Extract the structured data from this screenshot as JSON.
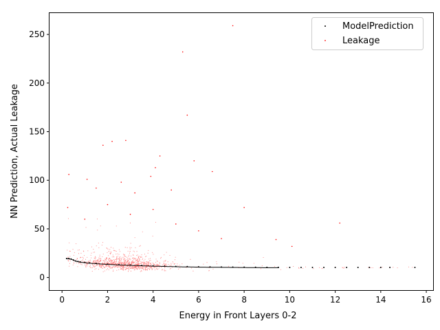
{
  "chart_data": {
    "type": "scatter",
    "title": "",
    "xlabel": "Energy in Front Layers 0-2",
    "ylabel": "NN Prediction, Actual Leakage",
    "xlim": [
      -0.55,
      16.3
    ],
    "ylim": [
      -13,
      272
    ],
    "xticks": [
      0,
      2,
      4,
      6,
      8,
      10,
      12,
      14,
      16
    ],
    "yticks": [
      0,
      50,
      100,
      150,
      200,
      250
    ],
    "grid": false,
    "legend_position": "top-right",
    "series": [
      {
        "name": "ModelPrediction",
        "color": "#000000",
        "marker": "point",
        "x": [
          0.2,
          0.3,
          0.4,
          0.5,
          0.6,
          0.7,
          0.8,
          1.0,
          1.2,
          1.5,
          2.0,
          2.5,
          3.0,
          3.5,
          4.0,
          4.5,
          5.0,
          5.5,
          6.0,
          6.5,
          7.0,
          7.5,
          8.0,
          8.5,
          9.0,
          9.5,
          10.0,
          10.5,
          11.0,
          11.5,
          12.0,
          12.5,
          13.0,
          13.5,
          14.0,
          14.4,
          15.5
        ],
        "y": [
          19.5,
          19.5,
          19.0,
          18.0,
          17.0,
          16.5,
          16.0,
          15.5,
          15.0,
          14.5,
          13.8,
          13.2,
          12.8,
          12.4,
          12.0,
          11.7,
          11.4,
          11.2,
          11.0,
          10.9,
          10.8,
          10.7,
          10.6,
          10.5,
          10.4,
          10.4,
          10.3,
          10.3,
          10.3,
          10.3,
          10.3,
          10.3,
          10.3,
          10.3,
          10.3,
          10.3,
          10.3
        ]
      },
      {
        "name": "Leakage",
        "color": "#ff0000",
        "marker": "point",
        "x": [
          7.5,
          5.3,
          5.5,
          1.8,
          2.8,
          2.2,
          4.3,
          5.8,
          4.1,
          0.3,
          1.1,
          3.9,
          6.6,
          2.6,
          1.5,
          0.25,
          4.8,
          8.0,
          12.2,
          3.2,
          9.4,
          10.1,
          1.0,
          2.0,
          3.0,
          4.0,
          5.0,
          6.0,
          7.0
        ],
        "y": [
          259,
          232,
          167,
          136,
          141,
          140,
          125,
          120,
          113,
          106,
          101,
          104,
          109,
          98,
          92,
          72,
          90,
          72,
          56,
          87,
          39,
          32,
          60,
          75,
          65,
          70,
          55,
          48,
          40
        ],
        "cloud": {
          "points": 9000,
          "x_range": [
            0.2,
            15.5
          ],
          "x_mode": 2.7,
          "baseline_y": [
            [
              0.2,
              19.5
            ],
            [
              1.0,
              15.5
            ],
            [
              2.0,
              13.8
            ],
            [
              4.0,
              12.0
            ],
            [
              6.0,
              11.0
            ],
            [
              8.0,
              10.6
            ],
            [
              12.0,
              10.3
            ],
            [
              15.5,
              10.3
            ]
          ]
        }
      }
    ]
  }
}
